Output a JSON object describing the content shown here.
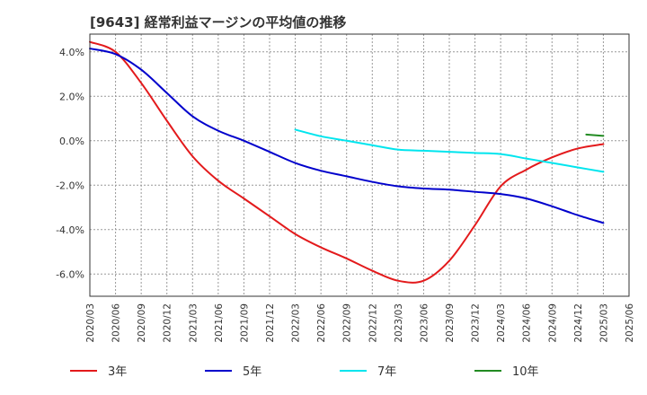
{
  "chart_data": {
    "type": "line",
    "title": "[9643]  経常利益マージンの平均値の推移",
    "xlabel": "",
    "ylabel": "",
    "y_unit": "%",
    "ylim": [
      -7.0,
      4.8
    ],
    "yticks": [
      4.0,
      2.0,
      0.0,
      -2.0,
      -4.0,
      -6.0
    ],
    "ytick_labels": [
      "4.0%",
      "2.0%",
      "0.0%",
      "-2.0%",
      "-4.0%",
      "-6.0%"
    ],
    "x_categories": [
      "2020/03",
      "2020/06",
      "2020/09",
      "2020/12",
      "2021/03",
      "2021/06",
      "2021/09",
      "2021/12",
      "2022/03",
      "2022/06",
      "2022/09",
      "2022/12",
      "2023/03",
      "2023/06",
      "2023/09",
      "2023/12",
      "2024/03",
      "2024/06",
      "2024/09",
      "2024/12",
      "2025/03",
      "2025/06"
    ],
    "grid": true,
    "legend_position": "bottom",
    "series": [
      {
        "name": "3年",
        "color": "#e31a1c",
        "x": [
          "2020/03",
          "2020/06",
          "2020/09",
          "2020/12",
          "2021/03",
          "2021/06",
          "2021/09",
          "2021/12",
          "2022/03",
          "2022/06",
          "2022/09",
          "2022/12",
          "2023/03",
          "2023/06",
          "2023/09",
          "2023/12",
          "2024/03",
          "2024/06",
          "2024/09",
          "2024/12",
          "2025/03"
        ],
        "values": [
          4.45,
          4.0,
          2.6,
          0.9,
          -0.7,
          -1.8,
          -2.6,
          -3.4,
          -4.2,
          -4.8,
          -5.3,
          -5.85,
          -6.3,
          -6.3,
          -5.4,
          -3.8,
          -2.05,
          -1.3,
          -0.75,
          -0.35,
          -0.15
        ]
      },
      {
        "name": "5年",
        "color": "#0000cc",
        "x": [
          "2020/03",
          "2020/06",
          "2020/09",
          "2020/12",
          "2021/03",
          "2021/06",
          "2021/09",
          "2021/12",
          "2022/03",
          "2022/06",
          "2022/09",
          "2022/12",
          "2023/03",
          "2023/06",
          "2023/09",
          "2023/12",
          "2024/03",
          "2024/06",
          "2024/09",
          "2024/12",
          "2025/03"
        ],
        "values": [
          4.15,
          3.9,
          3.2,
          2.15,
          1.1,
          0.45,
          0.0,
          -0.5,
          -1.0,
          -1.35,
          -1.6,
          -1.85,
          -2.05,
          -2.15,
          -2.2,
          -2.3,
          -2.4,
          -2.6,
          -2.95,
          -3.35,
          -3.7
        ]
      },
      {
        "name": "7年",
        "color": "#00e5ee",
        "x": [
          "2022/03",
          "2022/06",
          "2022/09",
          "2022/12",
          "2023/03",
          "2023/06",
          "2023/09",
          "2023/12",
          "2024/03",
          "2024/06",
          "2024/09",
          "2024/12",
          "2025/03"
        ],
        "values": [
          0.5,
          0.2,
          0.0,
          -0.2,
          -0.4,
          -0.45,
          -0.5,
          -0.55,
          -0.6,
          -0.8,
          -1.0,
          -1.2,
          -1.4
        ]
      },
      {
        "name": "10年",
        "color": "#228b22",
        "x": [
          "2025/01",
          "2025/03"
        ],
        "values": [
          0.28,
          0.22
        ]
      }
    ]
  }
}
